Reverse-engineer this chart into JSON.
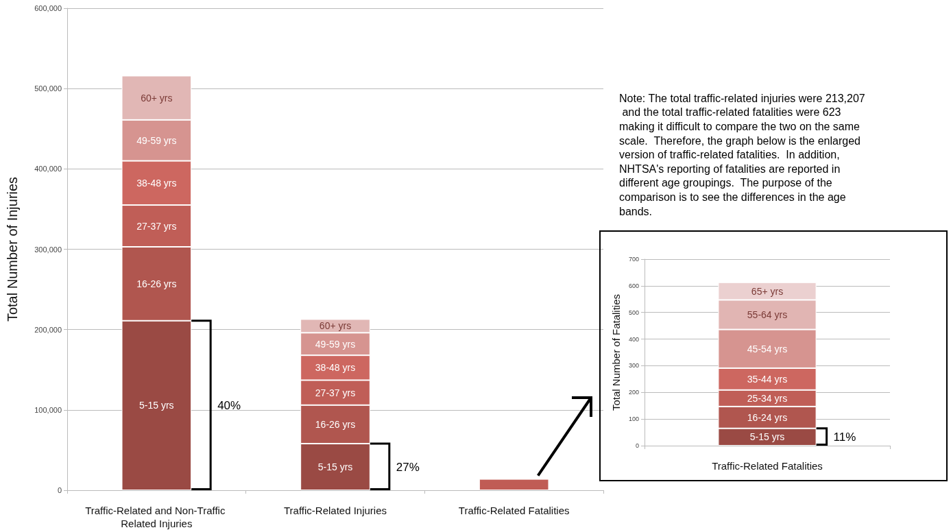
{
  "chart_data": [
    {
      "type": "bar",
      "stacked": true,
      "ylabel": "Total Number of Injuries",
      "categories": [
        "Traffic-Related and Non-Traffic Related Injuries",
        "Traffic-Related Injuries",
        "Traffic-Related Fatalities"
      ],
      "ylim": [
        0,
        600000
      ],
      "yticks": [
        {
          "value": 0,
          "label": "0"
        },
        {
          "value": 100000,
          "label": "100,000"
        },
        {
          "value": 200000,
          "label": "200,000"
        },
        {
          "value": 300000,
          "label": "300,000"
        },
        {
          "value": 400000,
          "label": "400,000"
        },
        {
          "value": 500000,
          "label": "500,000"
        },
        {
          "value": 600000,
          "label": "600,000"
        }
      ],
      "grid": "y",
      "legend": false,
      "series": [
        {
          "name": "5-15 yrs",
          "color": "#9a4a44",
          "values": [
            211000,
            58000,
            null
          ]
        },
        {
          "name": "16-26 yrs",
          "color": "#b0564f",
          "values": [
            92000,
            48000,
            null
          ]
        },
        {
          "name": "27-37 yrs",
          "color": "#c05e57",
          "values": [
            52000,
            31000,
            null
          ]
        },
        {
          "name": "38-48 yrs",
          "color": "#cd6760",
          "values": [
            55000,
            31000,
            null
          ]
        },
        {
          "name": "49-59 yrs",
          "color": "#d69490",
          "values": [
            51000,
            28000,
            null
          ]
        },
        {
          "name": "60+ yrs",
          "color": "#e1b7b5",
          "values": [
            55000,
            17000,
            null
          ]
        },
        {
          "color": "#c05c55",
          "values": [
            null,
            null,
            14000
          ]
        }
      ],
      "annotations": [
        "Note: The total traffic-related injuries were 213,207 and the total traffic-related fatalities were 623 making it difficult to compare the two on the same scale.  Therefore, the graph below is the enlarged version of traffic-related fatalities.  In addition, NHTSA's reporting of fatalities are reported in different age groupings.  The purpose of the comparison is to see the differences in the age bands.",
        "40%",
        "27%"
      ]
    },
    {
      "type": "bar",
      "stacked": true,
      "ylabel": "Total Number of Fatalities",
      "categories": [
        "Traffic-Related Fatalities"
      ],
      "ylim": [
        0,
        700
      ],
      "yticks": [
        0,
        100,
        200,
        300,
        400,
        500,
        600,
        700
      ],
      "grid": "y",
      "legend": false,
      "series": [
        {
          "name": "5-15 yrs",
          "color": "#9a4a44",
          "values": [
            65
          ]
        },
        {
          "name": "16-24 yrs",
          "color": "#b0564f",
          "values": [
            82
          ]
        },
        {
          "name": "25-34 yrs",
          "color": "#c05e57",
          "values": [
            62
          ]
        },
        {
          "name": "35-44 yrs",
          "color": "#cd6760",
          "values": [
            82
          ]
        },
        {
          "name": "45-54 yrs",
          "color": "#d69490",
          "values": [
            145
          ]
        },
        {
          "name": "55-64 yrs",
          "color": "#e1b5b3",
          "values": [
            111
          ]
        },
        {
          "name": "65+ yrs",
          "color": "#ebd0d0",
          "values": [
            66
          ]
        }
      ],
      "annotations": [
        "11%"
      ]
    }
  ]
}
